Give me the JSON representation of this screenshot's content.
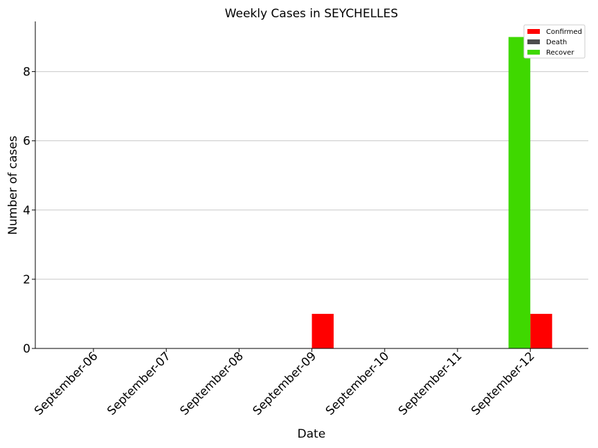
{
  "chart_data": {
    "type": "bar",
    "title": "Weekly Cases in SEYCHELLES",
    "xlabel": "Date",
    "ylabel": "Number of cases",
    "categories": [
      "September-06",
      "September-07",
      "September-08",
      "September-09",
      "September-10",
      "September-11",
      "September-12"
    ],
    "series": [
      {
        "name": "Confirmed",
        "color": "#ff0000",
        "values": [
          0,
          0,
          0,
          1,
          0,
          0,
          1
        ]
      },
      {
        "name": "Death",
        "color": "#4d4d4d",
        "values": [
          0,
          0,
          0,
          0,
          0,
          0,
          0
        ]
      },
      {
        "name": "Recover",
        "color": "#3fd800",
        "values": [
          0,
          0,
          0,
          0,
          0,
          0,
          9
        ]
      }
    ],
    "ylim": [
      0,
      9.45
    ],
    "yticks": [
      0,
      2,
      4,
      6,
      8
    ],
    "grid": "y",
    "legend": "top-right"
  }
}
